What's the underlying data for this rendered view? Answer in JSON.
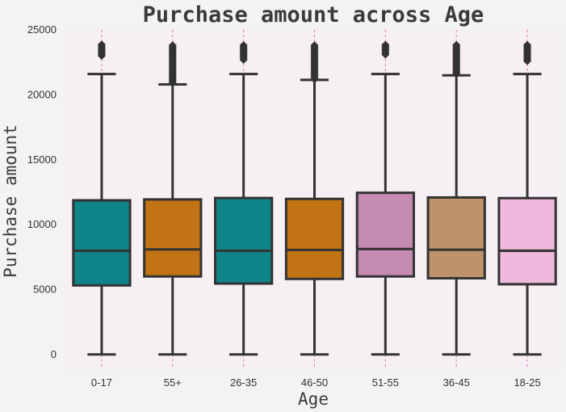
{
  "chart_data": {
    "type": "box",
    "title": "Purchase amount across Age",
    "xlabel": "Age",
    "ylabel": "Purchase amount",
    "ylim": [
      -1300,
      25000
    ],
    "yticks": [
      0,
      5000,
      10000,
      15000,
      20000,
      25000
    ],
    "grid": "dotted vertical at categories",
    "categories": [
      "0-17",
      "55+",
      "26-35",
      "46-50",
      "51-55",
      "36-45",
      "18-25"
    ],
    "boxes": [
      {
        "category": "0-17",
        "min": 12,
        "q1": 5330,
        "median": 8000,
        "q3": 11880,
        "max": 21600,
        "outliers_from": 23000,
        "outliers_to": 23900,
        "color": "#0f8589"
      },
      {
        "category": "55+",
        "min": 12,
        "q1": 6020,
        "median": 8100,
        "q3": 11950,
        "max": 20800,
        "outliers_from": 20950,
        "outliers_to": 23900,
        "color": "#c27414"
      },
      {
        "category": "26-35",
        "min": 12,
        "q1": 5470,
        "median": 8000,
        "q3": 12060,
        "max": 21600,
        "outliers_from": 22700,
        "outliers_to": 23900,
        "color": "#0f8589"
      },
      {
        "category": "46-50",
        "min": 12,
        "q1": 5830,
        "median": 8060,
        "q3": 11990,
        "max": 21150,
        "outliers_from": 21200,
        "outliers_to": 23900,
        "color": "#c27414"
      },
      {
        "category": "51-55",
        "min": 12,
        "q1": 6020,
        "median": 8130,
        "q3": 12460,
        "max": 21600,
        "outliers_from": 23100,
        "outliers_to": 23900,
        "color": "#c48aaf"
      },
      {
        "category": "36-45",
        "min": 12,
        "q1": 5880,
        "median": 8080,
        "q3": 12100,
        "max": 21500,
        "outliers_from": 21600,
        "outliers_to": 23900,
        "color": "#bf936a"
      },
      {
        "category": "18-25",
        "min": 12,
        "q1": 5420,
        "median": 8000,
        "q3": 12050,
        "max": 21600,
        "outliers_from": 22600,
        "outliers_to": 23900,
        "color": "#efb9dd"
      }
    ]
  }
}
